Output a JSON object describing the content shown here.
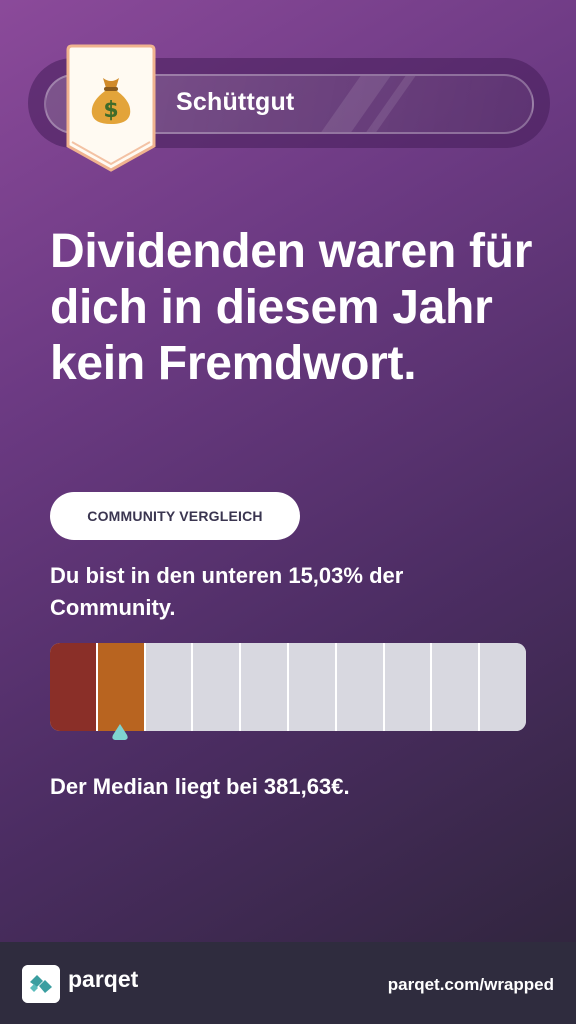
{
  "badge": {
    "title": "Schüttgut",
    "icon": "money-bag-icon"
  },
  "headline": "Dividenden waren für dich in diesem Jahr kein Fremdwort.",
  "community": {
    "pill_label": "COMMUNITY VERGLEICH",
    "rank_text": "Du bist in den unteren 15,03% der Community.",
    "percentile": 15.03,
    "segments": [
      {
        "color": "#8a2f28"
      },
      {
        "color": "#b86420"
      },
      {
        "color": "#d8d8e0"
      },
      {
        "color": "#d8d8e0"
      },
      {
        "color": "#d8d8e0"
      },
      {
        "color": "#d8d8e0"
      },
      {
        "color": "#d8d8e0"
      },
      {
        "color": "#d8d8e0"
      },
      {
        "color": "#d8d8e0"
      },
      {
        "color": "#d8d8e0"
      }
    ],
    "median_text": "Der Median liegt bei 381,63€."
  },
  "footer": {
    "brand": "parqet",
    "url": "parqet.com/wrapped"
  },
  "colors": {
    "marker": "#7fd3cf",
    "segment_low": "#8a2f28",
    "segment_mid": "#b86420"
  }
}
